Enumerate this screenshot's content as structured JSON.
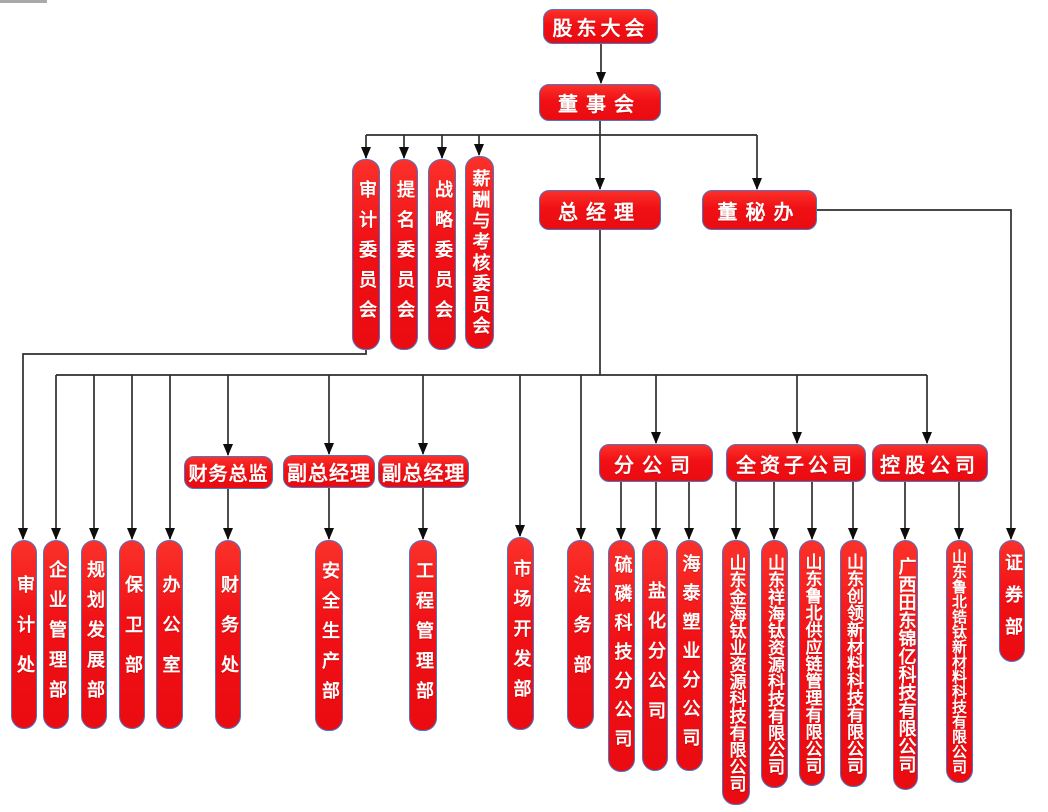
{
  "diagram_type": "org-chart",
  "colors": {
    "node_fill": "#f01015",
    "node_border": "#4d75c9",
    "node_text": "#ffffff",
    "connector": "#2e2e2e",
    "arrowhead": "#0d0d0d"
  },
  "nodes": [
    {
      "id": "shareholders",
      "label": "股东大会",
      "parent": null
    },
    {
      "id": "board",
      "label": "董事会",
      "parent": "shareholders"
    },
    {
      "id": "gm",
      "label": "总经理",
      "parent": "board"
    },
    {
      "id": "board-secretary-office",
      "label": "董秘办",
      "parent": "board"
    },
    {
      "id": "audit-committee",
      "label": "审计委员会",
      "parent": "board"
    },
    {
      "id": "nomination-committee",
      "label": "提名委员会",
      "parent": "board"
    },
    {
      "id": "strategy-committee",
      "label": "战略委员会",
      "parent": "board"
    },
    {
      "id": "remuneration-committee",
      "label": "薪酬与考核委员会",
      "parent": "board"
    },
    {
      "id": "cfo",
      "label": "财务总监",
      "parent": "gm"
    },
    {
      "id": "deputy-gm-1",
      "label": "副总经理",
      "parent": "gm"
    },
    {
      "id": "deputy-gm-2",
      "label": "副总经理",
      "parent": "gm"
    },
    {
      "id": "branch-companies",
      "label": "分公司",
      "parent": "gm"
    },
    {
      "id": "wholly-owned-companies",
      "label": "全资子公司",
      "parent": "gm"
    },
    {
      "id": "holding-companies",
      "label": "控股公司",
      "parent": "gm"
    },
    {
      "id": "audit-office",
      "label": "审计处",
      "parent": "audit-committee"
    },
    {
      "id": "enterprise-mgmt-dept",
      "label": "企业管理部",
      "parent": "gm"
    },
    {
      "id": "planning-dev-dept",
      "label": "规划发展部",
      "parent": "gm"
    },
    {
      "id": "security-dept",
      "label": "保卫部",
      "parent": "gm"
    },
    {
      "id": "general-office",
      "label": "办公室",
      "parent": "gm"
    },
    {
      "id": "finance-office",
      "label": "财务处",
      "parent": "cfo"
    },
    {
      "id": "safety-production-dept",
      "label": "安全生产部",
      "parent": "deputy-gm-1"
    },
    {
      "id": "engineering-mgmt-dept",
      "label": "工程管理部",
      "parent": "deputy-gm-2"
    },
    {
      "id": "market-dev-dept",
      "label": "市场开发部",
      "parent": "gm"
    },
    {
      "id": "legal-dept",
      "label": "法务部",
      "parent": "gm"
    },
    {
      "id": "sulfur-phosphorus-branch",
      "label": "硫磷科技分公司",
      "parent": "branch-companies"
    },
    {
      "id": "salt-chemical-branch",
      "label": "盐化分公司",
      "parent": "branch-companies"
    },
    {
      "id": "haitai-plastics-branch",
      "label": "海泰塑业分公司",
      "parent": "branch-companies"
    },
    {
      "id": "jinhai-titanium",
      "label": "山东金海钛业资源科技有限公司",
      "parent": "wholly-owned-companies"
    },
    {
      "id": "xianghai-titanium",
      "label": "山东祥海钛资源科技有限公司",
      "parent": "wholly-owned-companies"
    },
    {
      "id": "lubei-supply-chain",
      "label": "山东鲁北供应链管理有限公司",
      "parent": "wholly-owned-companies"
    },
    {
      "id": "chuangling-materials",
      "label": "山东创领新材料科技有限公司",
      "parent": "wholly-owned-companies"
    },
    {
      "id": "guangxi-jinyi",
      "label": "广西田东锦亿科技有限公司",
      "parent": "holding-companies"
    },
    {
      "id": "lubei-zirconium",
      "label": "山东鲁北锆钛新材料科技有限公司",
      "parent": "holding-companies"
    },
    {
      "id": "securities-dept",
      "label": "证券部",
      "parent": "board-secretary-office"
    }
  ]
}
